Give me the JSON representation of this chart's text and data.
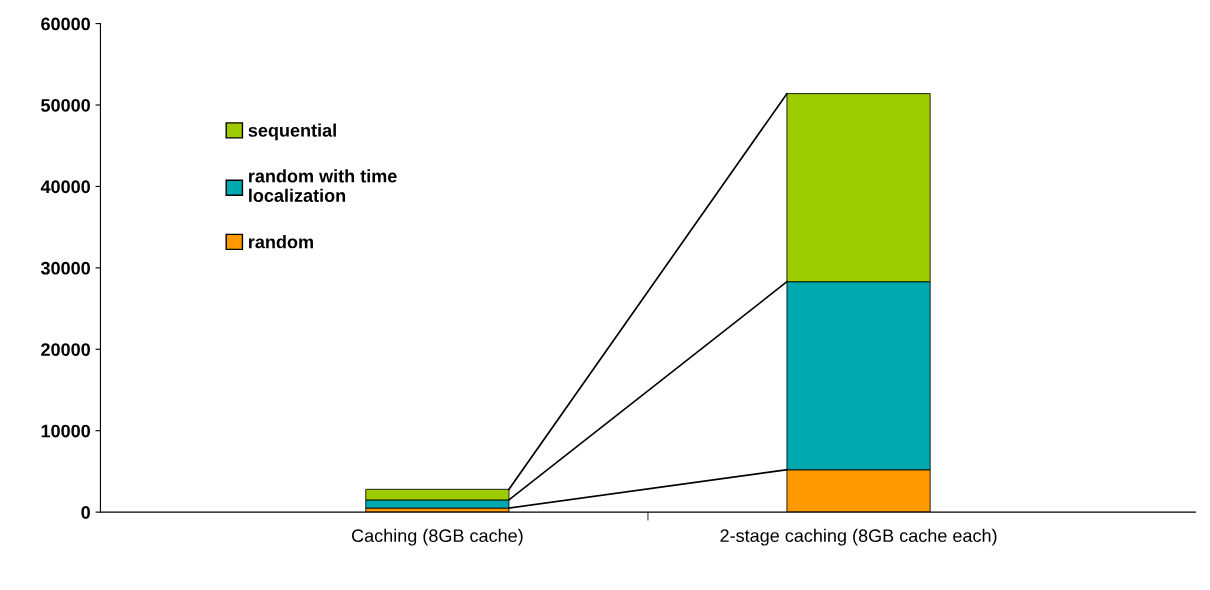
{
  "chart_data": {
    "type": "bar",
    "stacked": true,
    "categories": [
      "Caching (8GB cache)",
      "2-stage caching (8GB cache each)"
    ],
    "series": [
      {
        "name": "random",
        "color": "#ff9900",
        "values": [
          500,
          5200
        ]
      },
      {
        "name": "random with time localization",
        "color": "#00a8b0",
        "values": [
          1000,
          23100
        ]
      },
      {
        "name": "sequential",
        "color": "#9dcc00",
        "values": [
          1300,
          23100
        ]
      }
    ],
    "ylim": [
      0,
      60000
    ],
    "yticks": [
      0,
      10000,
      20000,
      30000,
      40000,
      50000,
      60000
    ],
    "grid": false,
    "legend": "top left"
  }
}
